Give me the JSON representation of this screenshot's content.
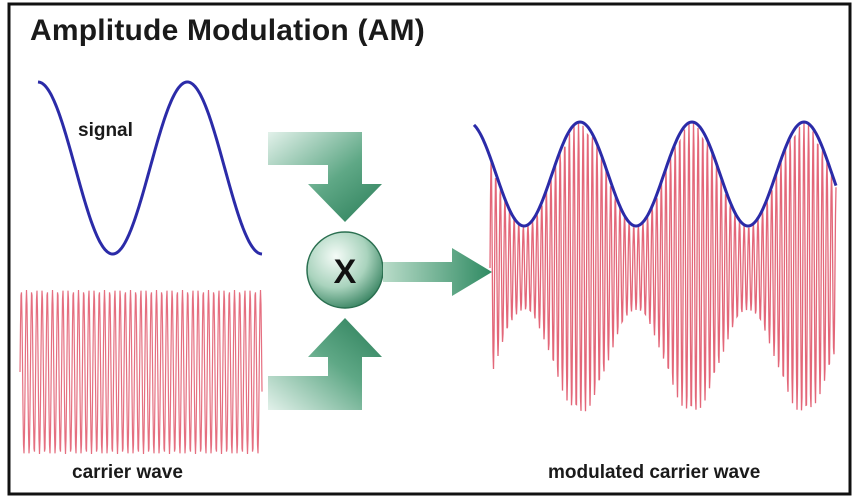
{
  "title": "Amplitude Modulation (AM)",
  "labels": {
    "signal": "signal",
    "carrier": "carrier wave",
    "modulated": "modulated carrier wave",
    "multiply": "X"
  },
  "colors": {
    "signal": "#2b2ba8",
    "carrier": "#e0566a",
    "arrow_light": "#c8e4d6",
    "arrow_dark": "#2f8a62",
    "border": "#111111"
  }
}
